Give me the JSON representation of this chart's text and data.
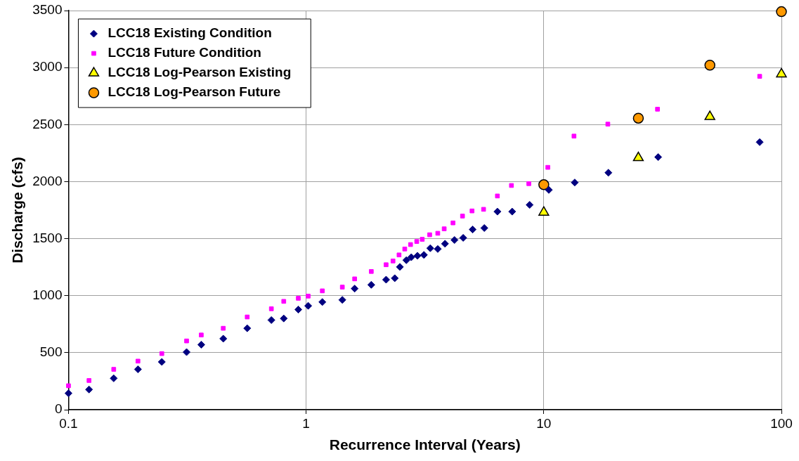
{
  "chart_data": {
    "type": "scatter",
    "xlabel": "Recurrence Interval (Years)",
    "ylabel": "Discharge (cfs)",
    "log": "x",
    "xlim": [
      0.1,
      100
    ],
    "xticks": [
      0.1,
      1,
      10,
      100
    ],
    "ylim": [
      0,
      3500
    ],
    "yticks": [
      0,
      500,
      1000,
      1500,
      2000,
      2500,
      3000,
      3500
    ],
    "grid": true,
    "legend": "top left",
    "series": [
      {
        "name": "LCC18 Existing Condition",
        "color": "#000080",
        "marker": "diamond",
        "x": [
          0.1,
          0.122,
          0.155,
          0.196,
          0.247,
          0.314,
          0.362,
          0.448,
          0.565,
          0.714,
          0.805,
          0.927,
          1.02,
          1.17,
          1.42,
          1.6,
          1.88,
          2.17,
          2.36,
          2.48,
          2.64,
          2.77,
          2.94,
          3.13,
          3.33,
          3.58,
          3.84,
          4.21,
          4.58,
          5.02,
          5.62,
          6.38,
          7.36,
          8.72,
          10.5,
          13.5,
          18.7,
          30.3,
          81
        ],
        "values": [
          144,
          177,
          275,
          354,
          419,
          505,
          570,
          623,
          714,
          786,
          800,
          878,
          911,
          944,
          963,
          1062,
          1095,
          1140,
          1153,
          1252,
          1311,
          1337,
          1350,
          1357,
          1416,
          1409,
          1455,
          1488,
          1507,
          1580,
          1593,
          1737,
          1737,
          1796,
          1927,
          1992,
          2078,
          2215,
          2346
        ]
      },
      {
        "name": "LCC18 Future Condition",
        "color": "#ff00ff",
        "marker": "square",
        "x": [
          0.1,
          0.122,
          0.155,
          0.196,
          0.247,
          0.314,
          0.362,
          0.448,
          0.565,
          0.714,
          0.805,
          0.927,
          1.02,
          1.17,
          1.42,
          1.6,
          1.88,
          2.17,
          2.32,
          2.46,
          2.6,
          2.75,
          2.92,
          3.08,
          3.31,
          3.58,
          3.81,
          4.15,
          4.55,
          4.99,
          5.58,
          6.38,
          7.31,
          8.65,
          10.4,
          13.4,
          18.6,
          30.1,
          81
        ],
        "values": [
          210,
          256,
          354,
          426,
          492,
          603,
          655,
          714,
          813,
          885,
          950,
          977,
          996,
          1042,
          1075,
          1147,
          1212,
          1271,
          1304,
          1357,
          1409,
          1448,
          1475,
          1494,
          1534,
          1547,
          1586,
          1638,
          1698,
          1743,
          1757,
          1874,
          1966,
          1982,
          2125,
          2399,
          2504,
          2635,
          2923
        ]
      },
      {
        "name": "LCC18 Log-Pearson Existing",
        "color": "#ffff00",
        "marker": "triangle",
        "x": [
          10,
          25,
          50,
          100
        ],
        "values": [
          1730,
          2209,
          2569,
          2943
        ]
      },
      {
        "name": "LCC18 Log-Pearson Future",
        "color": "#ff9900",
        "marker": "circle",
        "x": [
          10,
          25,
          50,
          100
        ],
        "values": [
          1973,
          2556,
          3021,
          3490
        ]
      }
    ]
  }
}
